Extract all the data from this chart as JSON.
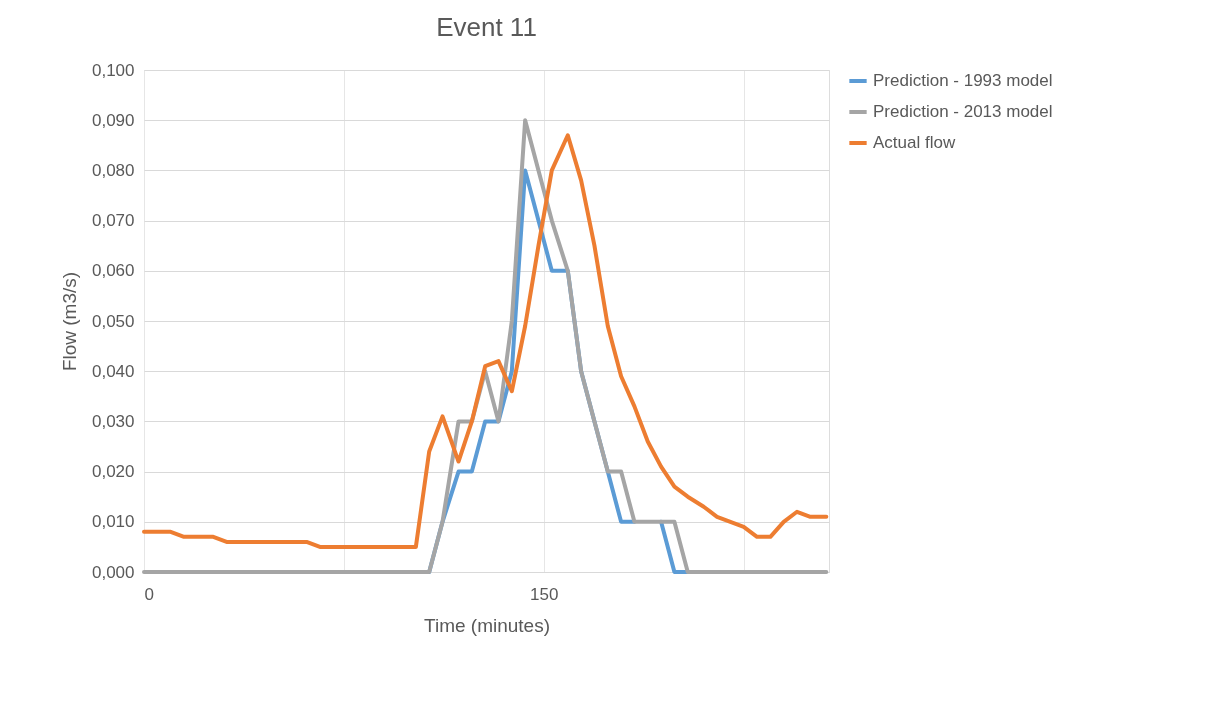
{
  "chart_data": {
    "type": "line",
    "title": "Event 11",
    "xlabel": "Time (minutes)",
    "ylabel": "Flow (m3/s)",
    "x": [
      0,
      5,
      10,
      15,
      20,
      26,
      31,
      36,
      41,
      46,
      51,
      56,
      61,
      66,
      72,
      77,
      82,
      87,
      92,
      97,
      102,
      107,
      112,
      118,
      123,
      128,
      133,
      138,
      143,
      148,
      153,
      159,
      164,
      169,
      174,
      179,
      184,
      189,
      194,
      199,
      204,
      210,
      215,
      220,
      225,
      230,
      235,
      240,
      245,
      250,
      256
    ],
    "series": [
      {
        "name": "Prediction - 1993 model",
        "color": "#5b9bd5",
        "values": [
          null,
          null,
          null,
          null,
          null,
          null,
          null,
          null,
          null,
          null,
          null,
          null,
          null,
          null,
          null,
          null,
          null,
          null,
          null,
          null,
          null,
          0,
          0.01,
          0.02,
          0.02,
          0.03,
          0.03,
          0.04,
          0.08,
          0.07,
          0.06,
          0.06,
          0.04,
          0.03,
          0.02,
          0.01,
          0.01,
          null,
          0.01,
          0,
          0,
          null,
          null,
          null,
          null,
          null,
          null,
          null,
          null,
          null,
          null
        ]
      },
      {
        "name": "Prediction - 2013 model",
        "color": "#a5a5a5",
        "values": [
          0,
          0,
          0,
          0,
          0,
          0,
          0,
          0,
          0,
          0,
          0,
          0,
          0,
          0,
          0,
          0,
          0,
          0,
          0,
          0,
          0,
          0,
          0.01,
          0.03,
          0.03,
          0.04,
          0.03,
          0.05,
          0.09,
          0.08,
          0.07,
          0.06,
          0.04,
          0.03,
          0.02,
          0.02,
          0.01,
          0.01,
          0.01,
          0.01,
          0,
          0,
          0,
          0,
          0,
          0,
          0,
          0,
          0,
          0,
          0
        ]
      },
      {
        "name": "Actual flow",
        "color": "#ed7d31",
        "values": [
          0.008,
          0.008,
          0.008,
          0.007,
          0.007,
          0.007,
          0.006,
          0.006,
          0.006,
          0.006,
          0.006,
          0.006,
          0.006,
          0.005,
          0.005,
          0.005,
          0.005,
          0.005,
          0.005,
          0.005,
          0.005,
          0.024,
          0.031,
          0.022,
          0.03,
          0.041,
          0.042,
          0.036,
          0.049,
          0.065,
          0.08,
          0.087,
          0.078,
          0.065,
          0.049,
          0.039,
          0.033,
          0.026,
          0.021,
          0.017,
          0.015,
          0.013,
          0.011,
          0.01,
          0.009,
          0.007,
          0.007,
          0.01,
          0.012,
          0.011,
          0.011
        ]
      }
    ],
    "xlim": [
      0,
      257
    ],
    "xticks": [
      0,
      {
        "value": 75,
        "label": null
      },
      150,
      {
        "value": 225,
        "label": null
      }
    ],
    "ylim": [
      0,
      0.1
    ],
    "yticks": [
      {
        "value": 0,
        "label": "0,000"
      },
      {
        "value": 0.01,
        "label": "0,010"
      },
      {
        "value": 0.02,
        "label": "0,020"
      },
      {
        "value": 0.03,
        "label": "0,030"
      },
      {
        "value": 0.04,
        "label": "0,040"
      },
      {
        "value": 0.05,
        "label": "0,050"
      },
      {
        "value": 0.06,
        "label": "0,060"
      },
      {
        "value": 0.07,
        "label": "0,070"
      },
      {
        "value": 0.08,
        "label": "0,080"
      },
      {
        "value": 0.09,
        "label": "0,090"
      },
      {
        "value": 0.1,
        "label": "0,100"
      }
    ],
    "grid": true,
    "legend": "right",
    "marker": "none",
    "line_style": "solid"
  }
}
